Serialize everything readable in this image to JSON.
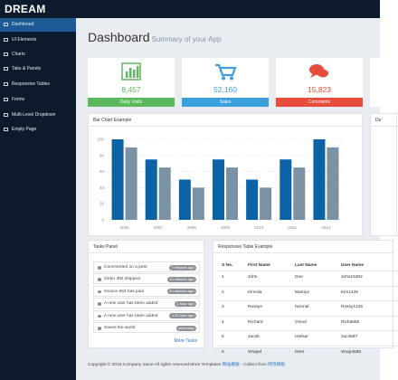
{
  "header": {
    "brand": "DREAM"
  },
  "sidebar": {
    "items": [
      "Dashboard",
      "UI Elements",
      "Charts",
      "Tabs & Panels",
      "Responsive Tables",
      "Forms",
      "Multi-Level Dropdown",
      "Empty Page"
    ]
  },
  "page_title": {
    "title": "Dashboard",
    "subtitle": "Summary of your App"
  },
  "stat_cards": [
    {
      "value": "8,457",
      "label": "Daily Visits"
    },
    {
      "value": "52,160",
      "label": "Sales"
    },
    {
      "value": "15,823",
      "label": "Comments"
    }
  ],
  "chart_data": {
    "type": "bar",
    "title": "Bar Chart Example",
    "categories": [
      "2006",
      "2007",
      "2008",
      "2009",
      "2010",
      "2011",
      "2012"
    ],
    "series": [
      {
        "color": "#0b62a4",
        "values": [
          100,
          75,
          50,
          75,
          50,
          75,
          100
        ]
      },
      {
        "color": "#7a92a3",
        "values": [
          90,
          65,
          40,
          65,
          40,
          65,
          90
        ]
      }
    ],
    "ylim": [
      0,
      100
    ],
    "yticks": [
      0,
      20,
      40,
      60,
      80,
      100
    ],
    "grid": true
  },
  "side_panel": {
    "title": "Du"
  },
  "tasks_panel": {
    "title": "Tasks Panel",
    "items": [
      {
        "text": "Commented on a post",
        "time": "7 minutes ago"
      },
      {
        "text": "Order 392 shipped",
        "time": "10 minutes ago"
      },
      {
        "text": "Invoice 653 has paid",
        "time": "20 minutes ago"
      },
      {
        "text": "A new user has been added",
        "time": "1 hour ago"
      },
      {
        "text": "A new user has been added",
        "time": "1.23 hour ago"
      },
      {
        "text": "Saved the world",
        "time": "yesterday"
      }
    ],
    "link": "More Tasks"
  },
  "table": {
    "title": "Responsive Table Example",
    "headers": [
      "S No.",
      "First Name",
      "Last Name",
      "User Name"
    ],
    "rows": [
      [
        "1",
        "John",
        "Doe",
        "John15482"
      ],
      [
        "2",
        "Kimsila",
        "Marriye",
        "Kim1425"
      ],
      [
        "3",
        "Rossye",
        "Nermal",
        "Rossy1245"
      ],
      [
        "4",
        "Richard",
        "Orieal",
        "Rich5685"
      ],
      [
        "5",
        "Jacob",
        "Hielsar",
        "Jac4587"
      ],
      [
        "6",
        "Wrapel",
        "Dere",
        "Wrap4585"
      ]
    ]
  },
  "footer": {
    "text1": "Copyright © 2016.Company name All rights reserved.More Templates ",
    "link1": "网站模板",
    "text2": " - Collect from ",
    "link2": "网页模板"
  }
}
